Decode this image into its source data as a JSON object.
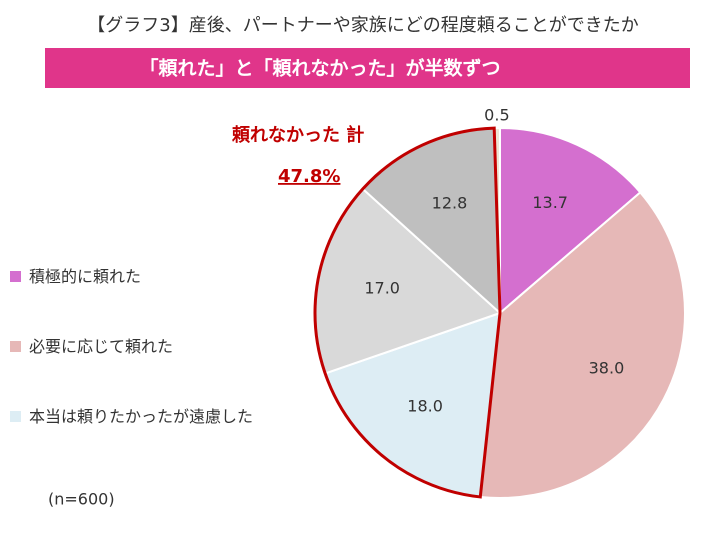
{
  "chart_data": {
    "type": "pie",
    "title": "【グラフ3】産後、パートナーや家族にどの程度頼ることができたか",
    "subtitle": "「頼れた」と「頼れなかった」が半数ずつ",
    "note": "(n=600)",
    "annotations": [
      "頼れなかった 計",
      "47.8%"
    ],
    "categories": [
      "積極的に頼れた",
      "必要に応じて頼れた",
      "本当は頼りたかったが遠慮した",
      null,
      null,
      null
    ],
    "values": [
      13.7,
      38.0,
      18.0,
      17.0,
      12.8,
      0.5
    ],
    "value_labels": [
      "13.7",
      "38.0",
      "18.0",
      "17.0",
      "12.8",
      "0.5"
    ],
    "colors": [
      "#d46fcf",
      "#e6b8b7",
      "#ddedf4",
      "#d9d9d9",
      "#bfbfbf",
      "#ede6d3"
    ],
    "highlight_color": "#c00000",
    "banner_color": "#e0358a"
  }
}
